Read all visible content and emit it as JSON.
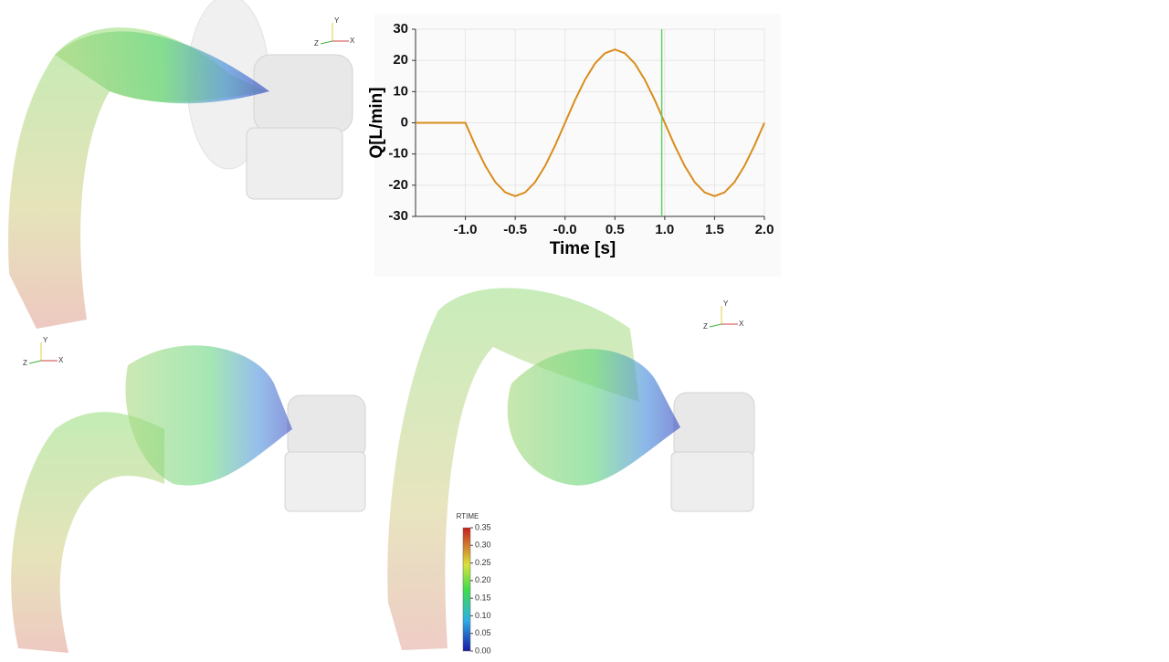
{
  "chart_data": {
    "type": "line",
    "x_label": "Time [s]",
    "y_label": "Q[L/min]",
    "x": [
      -1.5,
      -1.4,
      -1.3,
      -1.2,
      -1.1,
      -1.0,
      -0.9,
      -0.8,
      -0.7,
      -0.6,
      -0.5,
      -0.4,
      -0.3,
      -0.2,
      -0.1,
      0.0,
      0.1,
      0.2,
      0.3,
      0.4,
      0.5,
      0.6,
      0.7,
      0.8,
      0.9,
      1.0,
      1.1,
      1.2,
      1.3,
      1.4,
      1.5,
      1.6,
      1.7,
      1.8,
      1.9,
      2.0
    ],
    "series": [
      {
        "color": "#d98c1c",
        "values": [
          0,
          0,
          0,
          0,
          0,
          0,
          -7.3,
          -13.8,
          -19.0,
          -22.3,
          -23.5,
          -22.3,
          -19.0,
          -13.8,
          -7.3,
          0,
          7.3,
          13.8,
          19.0,
          22.3,
          23.5,
          22.3,
          19.0,
          13.8,
          7.3,
          0,
          -7.3,
          -13.8,
          -19.0,
          -22.3,
          -23.5,
          -22.3,
          -19.0,
          -13.8,
          -7.3,
          0
        ]
      }
    ],
    "xlim": [
      -1.5,
      2.0
    ],
    "ylim": [
      -30,
      30
    ],
    "xticks": [
      {
        "value": -1,
        "label": "-1.0"
      },
      -0.5,
      {
        "value": 0,
        "label": "-0.0"
      },
      0.5,
      {
        "value": 1,
        "label": "1.0"
      },
      1.5,
      {
        "value": 2,
        "label": "2.0"
      }
    ],
    "yticks": [
      -30,
      -20,
      -10,
      0,
      10,
      20,
      30
    ],
    "grid": true,
    "cursor": {
      "x": 0.97,
      "color": "#5fcf5f"
    }
  },
  "colorbar": {
    "title": "RTIME",
    "lim": [
      0,
      0.35
    ],
    "ticks": [
      {
        "value": 0,
        "label": "0.00"
      },
      {
        "value": 0.05,
        "label": "0.05"
      },
      {
        "value": 0.1,
        "label": "0.10"
      },
      {
        "value": 0.15,
        "label": "0.15"
      },
      {
        "value": 0.2,
        "label": "0.20"
      },
      {
        "value": 0.25,
        "label": "0.25"
      },
      {
        "value": 0.3,
        "label": "0.30"
      },
      {
        "value": 0.35,
        "label": "0.35"
      }
    ]
  },
  "axis_triads": [
    [
      "Y",
      "Z",
      "X"
    ],
    [
      "Y",
      "Z",
      "X"
    ],
    [
      "Y",
      "Z",
      "X"
    ]
  ]
}
